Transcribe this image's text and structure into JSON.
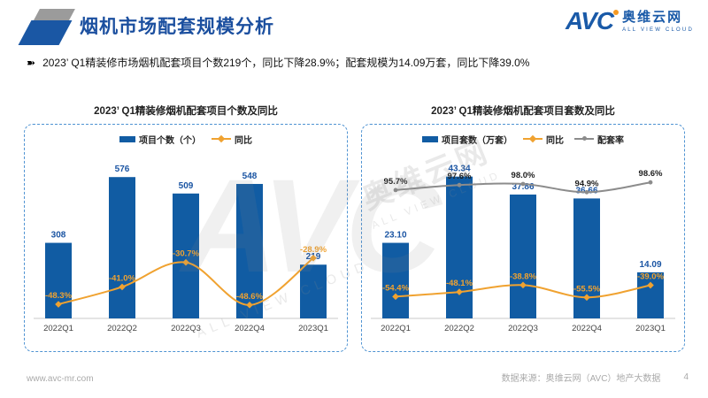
{
  "header": {
    "title": "烟机市场配套规模分析",
    "logo": {
      "brand": "AVC",
      "brand_cn": "奥维云网",
      "brand_en": "ALL VIEW CLOUD"
    }
  },
  "summary": {
    "bullet_icon": "➽",
    "text": "2023’ Q1精装修市场烟机配套项目个数219个，同比下降28.9%；配套规模为14.09万套，同比下降39.0%"
  },
  "colors": {
    "bar_blue": "#115CA3",
    "label_blue": "#1B55A3",
    "line_orange": "#F0A230",
    "line_gray": "#8C8C8C",
    "title_blue": "#1B4F9F",
    "dash_border": "#4F93D2"
  },
  "watermark": {
    "brand": "AVC",
    "cn": "奥维云网",
    "en": "ALL VIEW CLOUD"
  },
  "footer": {
    "website": "www.avc-mr.com",
    "source": "数据来源：奥维云网（AVC）地产大数据",
    "page": "4"
  },
  "chart_data": [
    {
      "type": "bar",
      "title": "2023’ Q1精装修烟机配套项目个数及同比",
      "categories": [
        "2022Q1",
        "2022Q2",
        "2022Q3",
        "2022Q4",
        "2023Q1"
      ],
      "ylim": [
        0,
        620
      ],
      "y2lim": [
        -52,
        -26
      ],
      "legend_position": "top",
      "grid": false,
      "series": [
        {
          "name": "项目个数（个）",
          "kind": "bar",
          "color": "#115CA3",
          "values": [
            308,
            576,
            509,
            548,
            219
          ],
          "labels": [
            "308",
            "576",
            "509",
            "548",
            "219"
          ]
        },
        {
          "name": "同比",
          "kind": "line",
          "axis": "pct",
          "color": "#F0A230",
          "values": [
            -48.3,
            -41.0,
            -30.7,
            -48.6,
            -28.9
          ],
          "labels": [
            "-48.3%",
            "-41.0%",
            "-30.7%",
            "-48.6%",
            "-28.9%"
          ]
        }
      ]
    },
    {
      "type": "bar",
      "title": "2023’ Q1精装修烟机配套项目套数及同比",
      "categories": [
        "2022Q1",
        "2022Q2",
        "2022Q3",
        "2022Q4",
        "2023Q1"
      ],
      "ylim": [
        0,
        46.5
      ],
      "y2lim": [
        -60,
        -30
      ],
      "y3lim": [
        90,
        100
      ],
      "legend_position": "top",
      "grid": false,
      "series": [
        {
          "name": "项目套数（万套）",
          "kind": "bar",
          "color": "#115CA3",
          "values": [
            23.1,
            43.34,
            37.86,
            36.66,
            14.09
          ],
          "labels": [
            "23.10",
            "43.34",
            "37.86",
            "36.66",
            "14.09"
          ]
        },
        {
          "name": "同比",
          "kind": "line",
          "axis": "pct",
          "color": "#F0A230",
          "values": [
            -54.4,
            -48.1,
            -38.8,
            -55.5,
            -39.0
          ],
          "labels": [
            "-54.4%",
            "-48.1%",
            "-38.8%",
            "-55.5%",
            "-39.0%"
          ]
        },
        {
          "name": "配套率",
          "kind": "line",
          "axis": "rate",
          "color": "#8C8C8C",
          "values": [
            95.7,
            97.6,
            98.0,
            94.9,
            98.6
          ],
          "labels": [
            "95.7%",
            "97.6%",
            "98.0%",
            "94.9%",
            "98.6%"
          ]
        }
      ]
    }
  ]
}
